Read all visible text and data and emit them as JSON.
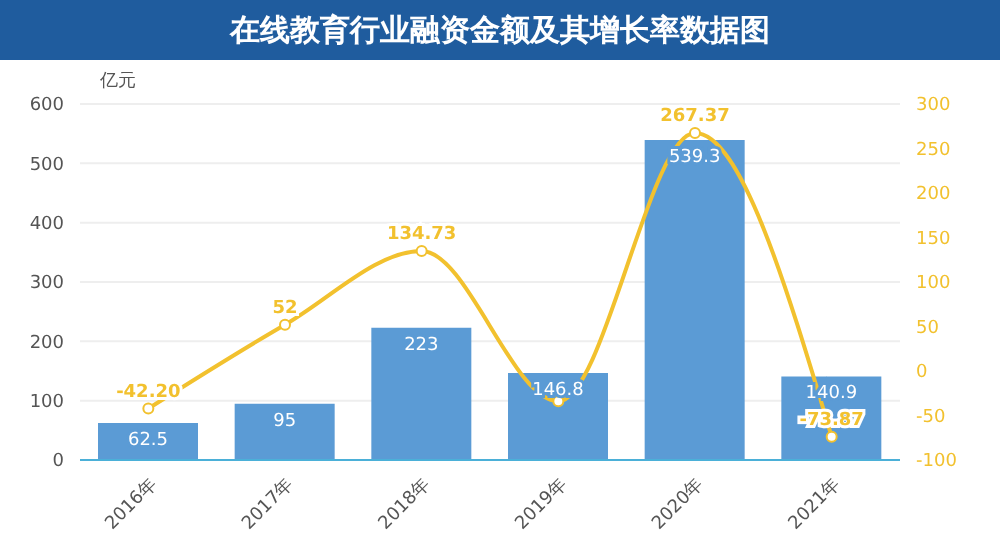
{
  "chart_data": {
    "type": "bar",
    "title": "在线教育行业融资金额及其增长率数据图",
    "ylabel": "亿元",
    "categories": [
      "2016年",
      "2017年",
      "2018年",
      "2019年",
      "2020年",
      "2021年"
    ],
    "series": [
      {
        "color": "#5b9bd5",
        "values": [
          62.5,
          95,
          223,
          146.8,
          539.3,
          140.9
        ],
        "value_labels": [
          "62.5",
          "95",
          "223",
          "146.8",
          "539.3",
          "140.9"
        ]
      },
      {
        "type": "line",
        "axis": "y2",
        "color": "#f2c12e",
        "values": [
          -42.2,
          52,
          134.73,
          -34,
          267.37,
          -73.87
        ],
        "value_labels": [
          "-42.20",
          "52",
          "134.73",
          null,
          "267.37",
          "-73.87"
        ],
        "marker": "circle"
      }
    ],
    "ylim": [
      0,
      600
    ],
    "yticks": [
      0,
      100,
      200,
      300,
      400,
      500,
      600
    ],
    "y2lim": [
      -100,
      300
    ],
    "y2ticks": [
      -100,
      -50,
      0,
      50,
      100,
      150,
      200,
      250,
      300
    ],
    "grid": "y",
    "legend": false
  }
}
